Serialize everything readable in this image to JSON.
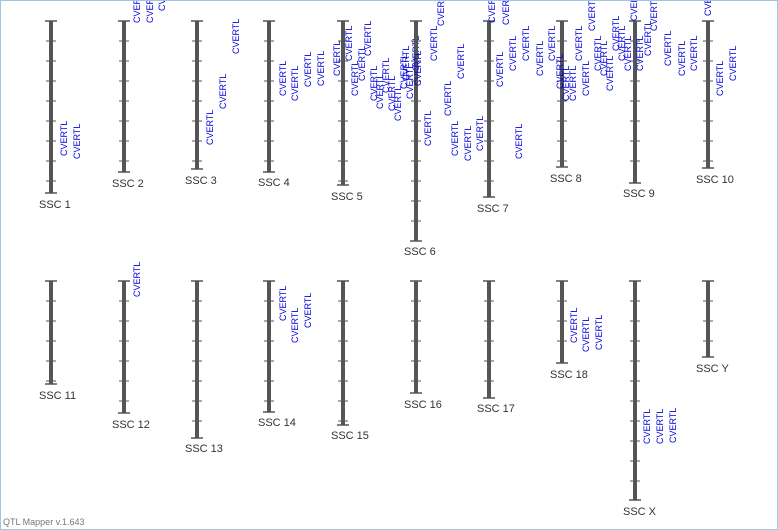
{
  "app": {
    "version": "QTL Mapper v.1.643"
  },
  "colors": {
    "chromosome": "#555555",
    "tick": "#555555",
    "qtl_label": "#0000dd",
    "chromosome_label": "#333333"
  },
  "qtl_name": "CVERTL",
  "chromosomes": [
    {
      "label": "SSC 1",
      "qtl_count": 2
    },
    {
      "label": "SSC 2",
      "qtl_count": 3
    },
    {
      "label": "SSC 3",
      "qtl_count": 3
    },
    {
      "label": "SSC 4",
      "qtl_count": 4
    },
    {
      "label": "SSC 5",
      "qtl_count": 13
    },
    {
      "label": "SSC 6",
      "qtl_count": 9
    },
    {
      "label": "SSC 7",
      "qtl_count": 7
    },
    {
      "label": "SSC 8",
      "qtl_count": 10
    },
    {
      "label": "SSC 9",
      "qtl_count": 8
    },
    {
      "label": "SSC 10",
      "qtl_count": 6
    },
    {
      "label": "SSC 11",
      "qtl_count": 0
    },
    {
      "label": "SSC 12",
      "qtl_count": 1
    },
    {
      "label": "SSC 13",
      "qtl_count": 0
    },
    {
      "label": "SSC 14",
      "qtl_count": 3
    },
    {
      "label": "SSC 15",
      "qtl_count": 0
    },
    {
      "label": "SSC 16",
      "qtl_count": 0
    },
    {
      "label": "SSC 17",
      "qtl_count": 0
    },
    {
      "label": "SSC 18",
      "qtl_count": 3
    },
    {
      "label": "SSC X",
      "qtl_count": 3
    },
    {
      "label": "SSC Y",
      "qtl_count": 0
    }
  ]
}
